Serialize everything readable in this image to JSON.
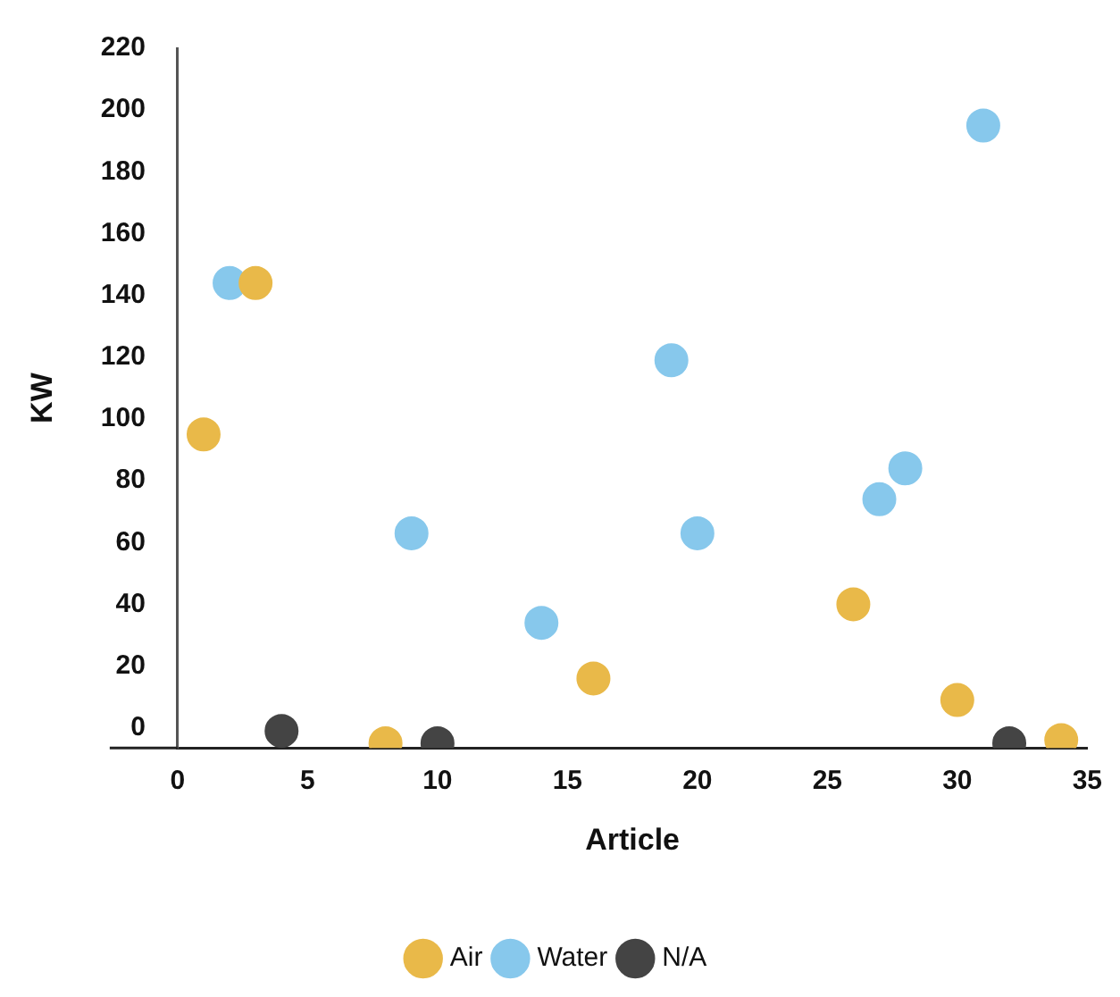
{
  "chart_data": {
    "type": "scatter",
    "xlabel": "Article",
    "ylabel": "KW",
    "xlim": [
      0,
      35
    ],
    "xticks": [
      0,
      5,
      10,
      15,
      20,
      25,
      30,
      35
    ],
    "ylim": [
      -6.5,
      220
    ],
    "yticks": [
      0,
      20,
      40,
      60,
      80,
      100,
      120,
      140,
      160,
      180,
      200,
      220
    ],
    "grid": false,
    "legend": "bottom",
    "marker": "circle",
    "series": [
      {
        "name": "Air",
        "color": "#e9b949",
        "x": [
          1,
          3,
          8,
          16,
          26,
          30,
          34
        ],
        "values": [
          95,
          144,
          -5,
          16,
          40,
          9,
          -4
        ]
      },
      {
        "name": "Water",
        "color": "#87c8ec",
        "x": [
          2,
          9,
          14,
          19,
          20,
          27,
          28,
          31
        ],
        "values": [
          144,
          63,
          34,
          119,
          63,
          74,
          84,
          195
        ]
      },
      {
        "name": "N/A",
        "color": "#444444",
        "x": [
          4,
          10,
          32
        ],
        "values": [
          -1,
          -5,
          -5
        ]
      }
    ]
  }
}
